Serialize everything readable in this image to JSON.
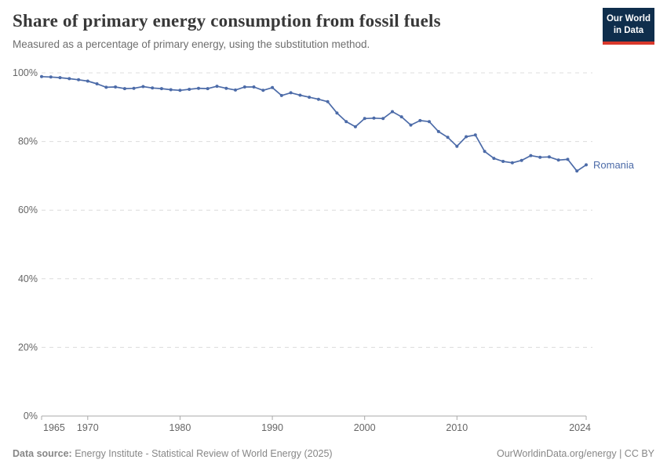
{
  "header": {
    "title": "Share of primary energy consumption from fossil fuels",
    "subtitle": "Measured as a percentage of primary energy, using the substitution method.",
    "logo_line1": "Our World",
    "logo_line2": "in Data"
  },
  "chart_data": {
    "type": "line",
    "title": "Share of primary energy consumption from fossil fuels",
    "xlabel": "",
    "ylabel": "",
    "xlim": [
      1965,
      2024
    ],
    "ylim": [
      0,
      100
    ],
    "grid": "horizontal-dashed",
    "legend_position": "end-of-line-label",
    "x_ticks": [
      1965,
      1970,
      1980,
      1990,
      2000,
      2010,
      2024
    ],
    "y_ticks": [
      0,
      20,
      40,
      60,
      80,
      100
    ],
    "y_tick_suffix": "%",
    "series": [
      {
        "name": "Romania",
        "color": "#4c6ba8",
        "start_year": 1965,
        "end_year": 2024,
        "values": [
          98.9,
          98.8,
          98.6,
          98.3,
          98.0,
          97.6,
          96.8,
          95.8,
          95.9,
          95.4,
          95.5,
          96.0,
          95.6,
          95.4,
          95.1,
          94.9,
          95.2,
          95.5,
          95.4,
          96.1,
          95.5,
          95.0,
          95.9,
          95.9,
          94.9,
          95.7,
          93.4,
          94.2,
          93.5,
          92.9,
          92.3,
          91.6,
          88.3,
          85.8,
          84.3,
          86.7,
          86.8,
          86.7,
          88.7,
          87.2,
          84.8,
          86.1,
          85.8,
          82.9,
          81.2,
          78.6,
          81.4,
          81.9,
          77.1,
          75.1,
          74.2,
          73.8,
          74.5,
          75.9,
          75.4,
          75.5,
          74.6,
          74.8,
          71.4,
          73.2
        ]
      }
    ]
  },
  "colors": {
    "line": "#4c6ba8",
    "series_label": "#4c6ba8",
    "gridline": "#dcdcdc",
    "axis": "#a8a8a8",
    "tick_text": "#666666",
    "title_text": "#383838",
    "subtitle_text": "#6e6e6e",
    "footer_text": "#878787",
    "logo_background": "#0f2e4c",
    "logo_stripe": "#d9382b"
  },
  "footer": {
    "datasource_label": "Data source:",
    "datasource_text": " Energy Institute - Statistical Review of World Energy (2025)",
    "credit": "OurWorldinData.org/energy | CC BY"
  }
}
